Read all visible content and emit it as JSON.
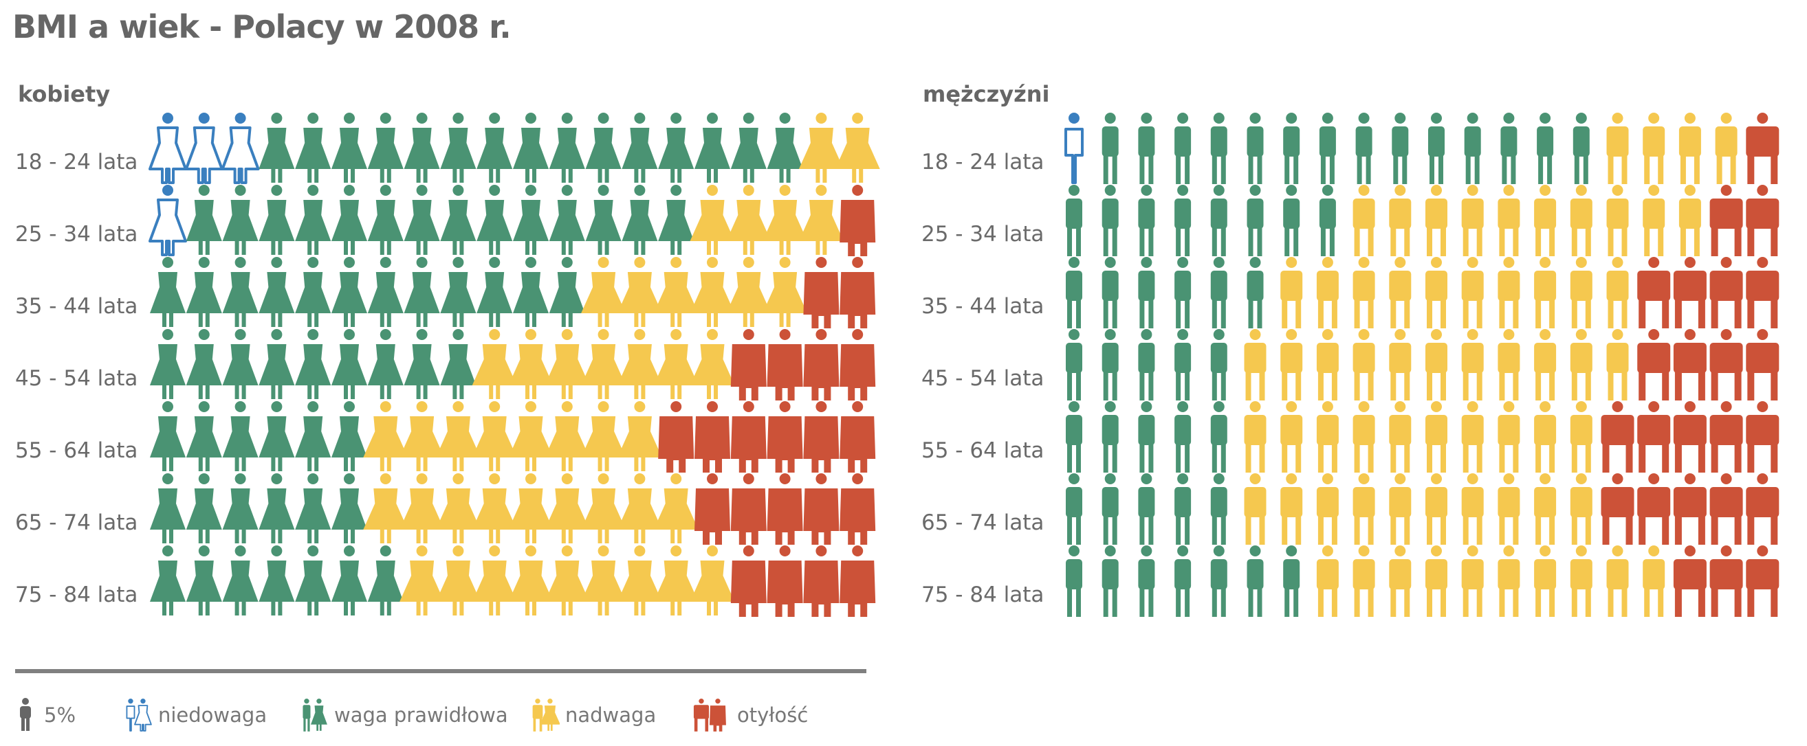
{
  "title": "BMI a wiek - Polacy w 2008 r.",
  "legend": {
    "unit_label": "5%",
    "items": [
      {
        "key": "underweight",
        "label": "niedowaga",
        "color": "#3a7fbf"
      },
      {
        "key": "normal",
        "label": "waga prawidłowa",
        "color": "#4a9373"
      },
      {
        "key": "overweight",
        "label": "nadwaga",
        "color": "#f5c84f"
      },
      {
        "key": "obese",
        "label": "otyłość",
        "color": "#cc5238"
      }
    ]
  },
  "chart_data": [
    {
      "type": "pictogram",
      "panel": "kobiety",
      "title": "kobiety",
      "unit": "5%",
      "categories": [
        "18 - 24 lata",
        "25 - 34 lata",
        "35 - 44 lata",
        "45 - 54 lata",
        "55 - 64 lata",
        "65 - 74 lata",
        "75 - 84 lata"
      ],
      "series": [
        {
          "name": "niedowaga",
          "values": [
            3,
            1,
            0,
            0,
            0,
            0,
            0
          ]
        },
        {
          "name": "waga prawidłowa",
          "values": [
            15,
            14,
            12,
            9,
            6,
            6,
            7
          ]
        },
        {
          "name": "nadwaga",
          "values": [
            2,
            4,
            6,
            7,
            8,
            9,
            9
          ]
        },
        {
          "name": "otyłość",
          "values": [
            0,
            1,
            2,
            4,
            6,
            5,
            4
          ]
        }
      ]
    },
    {
      "type": "pictogram",
      "panel": "mężczyźni",
      "title": "mężczyźni",
      "unit": "5%",
      "categories": [
        "18 - 24 lata",
        "25 - 34 lata",
        "35 - 44 lata",
        "45 - 54 lata",
        "55 - 64 lata",
        "65 - 74 lata",
        "75 - 84 lata"
      ],
      "series": [
        {
          "name": "niedowaga",
          "values": [
            1,
            0,
            0,
            0,
            0,
            0,
            0
          ]
        },
        {
          "name": "waga prawidłowa",
          "values": [
            14,
            8,
            6,
            5,
            5,
            5,
            7
          ]
        },
        {
          "name": "nadwaga",
          "values": [
            4,
            10,
            10,
            11,
            10,
            10,
            10
          ]
        },
        {
          "name": "otyłość",
          "values": [
            1,
            2,
            4,
            4,
            5,
            5,
            3
          ]
        }
      ]
    }
  ]
}
